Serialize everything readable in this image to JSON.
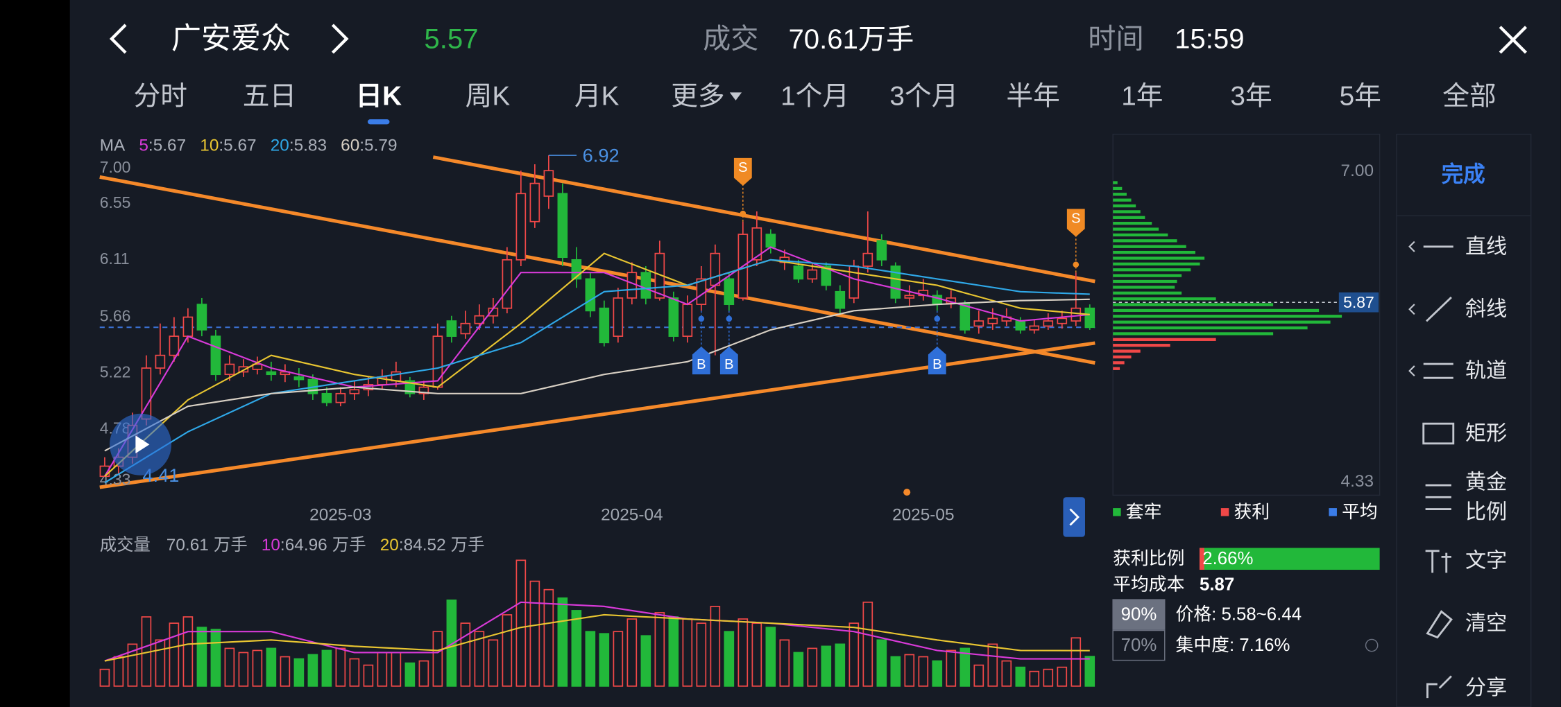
{
  "header": {
    "stock": "广安爱众",
    "volume_label": "成交",
    "time_label": "时间",
    "time": "15:59"
  },
  "tabs": [
    "分时",
    "五日",
    "日K",
    "周K",
    "月K",
    "更多",
    "1个月",
    "3个月",
    "半年",
    "1年",
    "3年",
    "5年",
    "全部"
  ],
  "active_tab": 2,
  "kline": {
    "ylim": [
      4.33,
      7.0
    ],
    "yticks": [
      {
        "value": 7.0,
        "label": "7.00"
      },
      6.55,
      6.11,
      5.66,
      5.22,
      4.78,
      4.33
    ],
    "xticks": [
      {
        "index": 17,
        "label": "2025-03"
      },
      {
        "index": 38,
        "label": "2025-04"
      },
      {
        "index": 59,
        "label": "2025-05"
      }
    ],
    "up_color": "#f04848",
    "down_color": "#22b83a",
    "candles": [
      [
        4.4,
        4.48,
        4.55,
        4.42
      ],
      [
        4.48,
        4.55,
        4.62,
        4.41
      ],
      [
        4.55,
        4.8,
        4.9,
        4.5
      ],
      [
        4.85,
        5.25,
        5.35,
        4.8
      ],
      [
        5.25,
        5.35,
        5.6,
        5.2
      ],
      [
        5.35,
        5.5,
        5.65,
        5.3
      ],
      [
        5.5,
        5.65,
        5.72,
        5.45
      ],
      [
        5.75,
        5.55,
        5.8,
        5.5
      ],
      [
        5.5,
        5.2,
        5.55,
        5.15
      ],
      [
        5.2,
        5.28,
        5.35,
        5.15
      ],
      [
        5.22,
        5.26,
        5.32,
        5.18
      ],
      [
        5.24,
        5.28,
        5.34,
        5.2
      ],
      [
        5.22,
        5.2,
        5.3,
        5.15
      ],
      [
        5.2,
        5.22,
        5.28,
        5.14
      ],
      [
        5.18,
        5.16,
        5.25,
        5.1
      ],
      [
        5.16,
        5.05,
        5.2,
        5.0
      ],
      [
        5.05,
        4.98,
        5.1,
        4.95
      ],
      [
        4.98,
        5.05,
        5.1,
        4.95
      ],
      [
        5.05,
        5.08,
        5.15,
        5.0
      ],
      [
        5.08,
        5.12,
        5.18,
        5.03
      ],
      [
        5.12,
        5.18,
        5.24,
        5.08
      ],
      [
        5.15,
        5.22,
        5.3,
        5.1
      ],
      [
        5.15,
        5.05,
        5.18,
        5.02
      ],
      [
        5.05,
        5.1,
        5.15,
        5.0
      ],
      [
        5.1,
        5.5,
        5.6,
        5.08
      ],
      [
        5.62,
        5.5,
        5.66,
        5.45
      ],
      [
        5.52,
        5.6,
        5.7,
        5.48
      ],
      [
        5.6,
        5.66,
        5.75,
        5.55
      ],
      [
        5.66,
        5.72,
        5.8,
        5.6
      ],
      [
        5.72,
        6.1,
        6.2,
        5.68
      ],
      [
        6.1,
        6.62,
        6.8,
        6.05
      ],
      [
        6.4,
        6.7,
        6.85,
        6.35
      ],
      [
        6.6,
        6.8,
        6.92,
        6.5
      ],
      [
        6.62,
        6.12,
        6.7,
        6.05
      ],
      [
        6.1,
        5.95,
        6.2,
        5.88
      ],
      [
        5.95,
        5.7,
        6.0,
        5.65
      ],
      [
        5.72,
        5.45,
        5.78,
        5.42
      ],
      [
        5.5,
        5.8,
        5.88,
        5.45
      ],
      [
        5.8,
        6.0,
        6.08,
        5.75
      ],
      [
        6.0,
        5.8,
        6.05,
        5.75
      ],
      [
        5.8,
        6.15,
        6.25,
        5.78
      ],
      [
        5.8,
        5.5,
        5.85,
        5.46
      ],
      [
        5.5,
        5.75,
        5.82,
        5.45
      ],
      [
        5.75,
        5.95,
        6.05,
        5.7
      ],
      [
        5.9,
        6.15,
        6.22,
        5.35
      ],
      [
        5.95,
        5.75,
        6.0,
        5.7
      ],
      [
        5.8,
        6.3,
        6.4,
        5.78
      ],
      [
        6.1,
        6.35,
        6.48,
        6.05
      ],
      [
        6.3,
        6.2,
        6.34,
        6.15
      ],
      [
        6.08,
        6.12,
        6.18,
        6.02
      ],
      [
        6.05,
        5.95,
        6.1,
        5.92
      ],
      [
        5.95,
        6.02,
        6.08,
        5.92
      ],
      [
        6.05,
        5.9,
        6.08,
        5.86
      ],
      [
        5.85,
        5.72,
        5.9,
        5.68
      ],
      [
        5.8,
        6.05,
        6.1,
        5.76
      ],
      [
        6.05,
        6.15,
        6.48,
        6.0
      ],
      [
        6.25,
        6.1,
        6.3,
        6.05
      ],
      [
        6.05,
        5.8,
        6.08,
        5.76
      ],
      [
        5.8,
        5.82,
        5.9,
        5.74
      ],
      [
        5.82,
        5.86,
        5.95,
        5.78
      ],
      [
        5.82,
        5.75,
        5.86,
        5.7
      ],
      [
        5.76,
        5.8,
        5.86,
        5.72
      ],
      [
        5.75,
        5.55,
        5.78,
        5.52
      ],
      [
        5.58,
        5.62,
        5.7,
        5.52
      ],
      [
        5.6,
        5.64,
        5.72,
        5.55
      ],
      [
        5.62,
        5.65,
        5.72,
        5.58
      ],
      [
        5.62,
        5.55,
        5.65,
        5.52
      ],
      [
        5.55,
        5.58,
        5.63,
        5.52
      ],
      [
        5.58,
        5.62,
        5.68,
        5.55
      ],
      [
        5.6,
        5.64,
        5.7,
        5.56
      ],
      [
        5.62,
        5.72,
        6.0,
        5.58
      ],
      [
        5.72,
        5.57,
        5.75,
        5.55
      ]
    ],
    "ma_label": "MA",
    "separator": ":",
    "ma_index": [
      0,
      6,
      12,
      18,
      24,
      30,
      36,
      42,
      48,
      54,
      60,
      66,
      71
    ],
    "ma": [
      {
        "name": "5",
        "color": "#d83ad8",
        "values": [
          4.4,
          5.5,
          5.25,
          5.1,
          5.15,
          6.0,
          6.0,
          5.75,
          6.2,
          5.95,
          5.8,
          5.62,
          5.67
        ]
      },
      {
        "name": "10",
        "color": "#e8c531",
        "values": [
          4.4,
          5.0,
          5.35,
          5.2,
          5.1,
          5.6,
          6.15,
          5.9,
          6.1,
          6.0,
          5.9,
          5.72,
          5.67
        ]
      },
      {
        "name": "20",
        "color": "#2fa8e8",
        "values": [
          4.35,
          4.75,
          5.05,
          5.15,
          5.25,
          5.45,
          5.85,
          5.9,
          6.1,
          6.05,
          5.95,
          5.85,
          5.83
        ]
      },
      {
        "name": "60",
        "color": "#d8d0c4",
        "values": [
          4.6,
          4.95,
          5.05,
          5.1,
          5.05,
          5.05,
          5.2,
          5.3,
          5.55,
          5.7,
          5.75,
          5.78,
          5.79
        ]
      }
    ],
    "signals": [
      {
        "label": "B",
        "index": 43
      },
      {
        "label": "B",
        "index": 45
      },
      {
        "label": "S",
        "index": 46
      },
      {
        "label": "B",
        "index": 60
      },
      {
        "label": "S",
        "index": 70
      }
    ]
  },
  "volume": {
    "label": "成交量",
    "unit": "万手",
    "ylim": [
      0,
      320
    ],
    "values": [
      40,
      70,
      100,
      165,
      110,
      150,
      165,
      140,
      135,
      90,
      80,
      85,
      90,
      70,
      65,
      75,
      85,
      90,
      65,
      50,
      80,
      80,
      55,
      60,
      130,
      205,
      150,
      130,
      110,
      170,
      300,
      250,
      230,
      210,
      180,
      130,
      125,
      130,
      160,
      120,
      175,
      165,
      160,
      150,
      190,
      130,
      160,
      150,
      140,
      110,
      80,
      90,
      95,
      100,
      150,
      200,
      110,
      70,
      75,
      70,
      60,
      85,
      90,
      50,
      100,
      60,
      45,
      35,
      40,
      45,
      115,
      70.61
    ],
    "ma": [
      {
        "name": "10",
        "color": "#d83ad8",
        "values": [
          60,
          130,
          130,
          80,
          80,
          200,
          190,
          160,
          150,
          130,
          85,
          65,
          64.96
        ]
      },
      {
        "name": "20",
        "color": "#e8c531",
        "values": [
          60,
          100,
          110,
          95,
          85,
          140,
          170,
          160,
          150,
          140,
          110,
          85,
          84.52
        ]
      }
    ]
  },
  "chips": {
    "ylim": [
      4.33,
      7.0
    ],
    "yticks": [
      {
        "value": 7.0,
        "label": "7.00"
      },
      4.33
    ],
    "prices": [
      6.9,
      6.85,
      6.8,
      6.75,
      6.7,
      6.65,
      6.6,
      6.55,
      6.5,
      6.45,
      6.4,
      6.35,
      6.3,
      6.25,
      6.2,
      6.15,
      6.1,
      6.05,
      6.0,
      5.95,
      5.9,
      5.85,
      5.8,
      5.75,
      5.7,
      5.65,
      5.6,
      5.55,
      5.5,
      5.45,
      5.4,
      5.35,
      5.3
    ],
    "amounts": [
      2,
      4,
      6,
      8,
      10,
      12,
      14,
      17,
      20,
      24,
      28,
      32,
      36,
      40,
      38,
      34,
      30,
      28,
      27,
      30,
      45,
      70,
      90,
      100,
      95,
      85,
      70,
      45,
      25,
      12,
      8,
      5,
      3
    ],
    "avg_cost": 5.87,
    "legend": [
      {
        "name": "套牢",
        "color": "#22b83a"
      },
      {
        "name": "获利",
        "color": "#f04848"
      },
      {
        "name": "平均",
        "color": "#3b7de8"
      }
    ],
    "profit_ratio_label": "获利比例",
    "profit_ratio": {
      "value": 2.66,
      "label": "2.66%"
    },
    "avg_cost_label": "平均成本",
    "bands": [
      {
        "level": "90%",
        "detail": "价格: 5.58~6.44"
      },
      {
        "level": "70%",
        "detail": "集中度: 7.16%"
      }
    ]
  },
  "toolbar": {
    "done": "完成",
    "tools": [
      [
        "直线"
      ],
      [
        "斜线"
      ],
      [
        "轨道"
      ],
      [
        "矩形"
      ],
      [
        "黄金",
        "比例"
      ],
      [
        "文字"
      ],
      [
        "清空"
      ],
      [
        "分享"
      ]
    ]
  }
}
